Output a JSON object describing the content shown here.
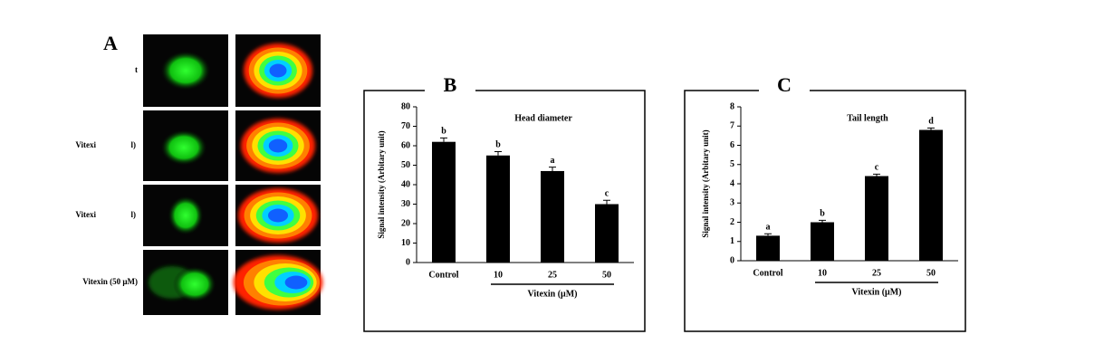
{
  "panel_a": {
    "label": "A",
    "rows": [
      {
        "left": "t",
        "right": null
      },
      {
        "left": "Vitexi",
        "right": "l)"
      },
      {
        "left": "Vitexi",
        "right": "l)"
      },
      {
        "left": "Vitexin (50 μM)",
        "right": null
      }
    ]
  },
  "chart_data": [
    {
      "type": "bar",
      "panel": "B",
      "title": "Head diameter",
      "ylabel": "Signal intensity (Arbitary unit)",
      "xlabel": "Vitexin (μM)",
      "categories": [
        "Control",
        "10",
        "25",
        "50"
      ],
      "values": [
        62,
        55,
        47,
        30
      ],
      "errors": [
        2,
        2,
        2,
        2
      ],
      "annotations": [
        "b",
        "b",
        "a",
        "c"
      ],
      "color": "#000000",
      "ylim": [
        0,
        80
      ],
      "yticks": [
        0,
        10,
        20,
        30,
        40,
        50,
        60,
        70,
        80
      ]
    },
    {
      "type": "bar",
      "panel": "C",
      "title": "Tail length",
      "ylabel": "Signal intensity (Arbitary unit)",
      "xlabel": "Vitexin (μM)",
      "categories": [
        "Control",
        "10",
        "25",
        "50"
      ],
      "values": [
        1.3,
        2.0,
        4.4,
        6.8
      ],
      "errors": [
        0.1,
        0.1,
        0.1,
        0.1
      ],
      "annotations": [
        "a",
        "b",
        "c",
        "d"
      ],
      "color": "#000000",
      "ylim": [
        0,
        8
      ],
      "yticks": [
        0,
        1,
        2,
        3,
        4,
        5,
        6,
        7,
        8
      ]
    }
  ]
}
